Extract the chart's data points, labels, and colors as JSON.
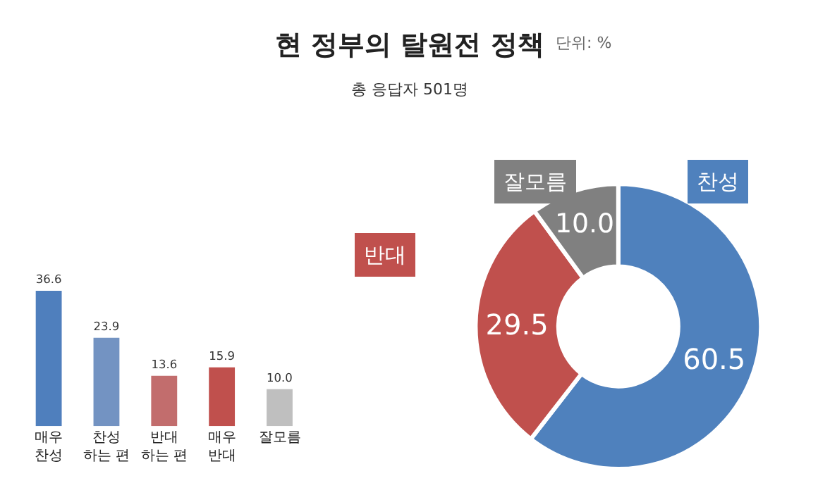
{
  "chart_data": [
    {
      "type": "bar",
      "title": "현 정부의 탈원전 정책",
      "annotations": [
        "단위: %"
      ],
      "categories": [
        "매우\n찬성",
        "찬성\n하는 편",
        "반대\n하는 편",
        "매우\n반대",
        "잘모름"
      ],
      "values": [
        36.6,
        23.9,
        13.6,
        15.9,
        10.0
      ],
      "value_labels": [
        "36.6",
        "23.9",
        "13.6",
        "15.9",
        "10.0"
      ],
      "colors": [
        "#4f7fbd",
        "#7393c2",
        "#c26d6d",
        "#c0504d",
        "#bfbfbf"
      ]
    },
    {
      "type": "donut",
      "subtitle": "총 응답자 501명",
      "categories": [
        "찬성",
        "반대",
        "잘모름"
      ],
      "values": [
        60.5,
        29.5,
        10.0
      ],
      "value_labels": [
        "60.5",
        "29.5",
        "10.0"
      ],
      "colors": [
        "#4f81bd",
        "#c0504d",
        "#808080"
      ]
    }
  ]
}
